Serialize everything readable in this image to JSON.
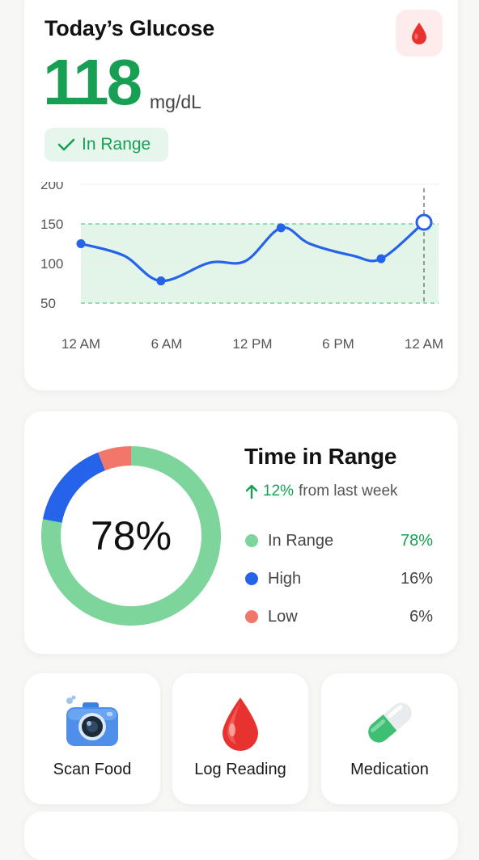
{
  "glucose_card": {
    "title": "Today’s Glucose",
    "value": "118",
    "unit": "mg/dL",
    "status": "In Range",
    "icon": "blood-drop-icon"
  },
  "chart_data": {
    "type": "line",
    "x_labels": [
      "12 AM",
      "6 AM",
      "12 PM",
      "6 PM",
      "12 AM"
    ],
    "y_ticks": [
      "200",
      "150",
      "100",
      "50"
    ],
    "ylim": [
      50,
      200
    ],
    "target_range": [
      50,
      150
    ],
    "series": [
      {
        "x_hours": [
          0,
          3,
          5.6,
          9,
          11.5,
          14,
          16,
          19,
          21,
          24
        ],
        "values": [
          125,
          110,
          78,
          101,
          103,
          145,
          125,
          110,
          106,
          152
        ]
      }
    ],
    "markers_hours": [
      0,
      5.6,
      14,
      21
    ],
    "current_hour": 24,
    "colors": {
      "line": "#2563eb",
      "band": "#dcf3e3",
      "band_edge": "#5cc98a"
    }
  },
  "time_in_range": {
    "title": "Time in Range",
    "change_pct": "12%",
    "change_text": "from last week",
    "center_label": "78%",
    "items": [
      {
        "label": "In Range",
        "value": "78%",
        "pct": 78,
        "color": "#7dd59c"
      },
      {
        "label": "High",
        "value": "16%",
        "pct": 16,
        "color": "#2563eb"
      },
      {
        "label": "Low",
        "value": "6%",
        "pct": 6,
        "color": "#f2766a"
      }
    ]
  },
  "actions": [
    {
      "label": "Scan Food",
      "icon": "camera-icon"
    },
    {
      "label": "Log Reading",
      "icon": "blood-drop-icon"
    },
    {
      "label": "Medication",
      "icon": "pill-capsule-icon"
    }
  ]
}
